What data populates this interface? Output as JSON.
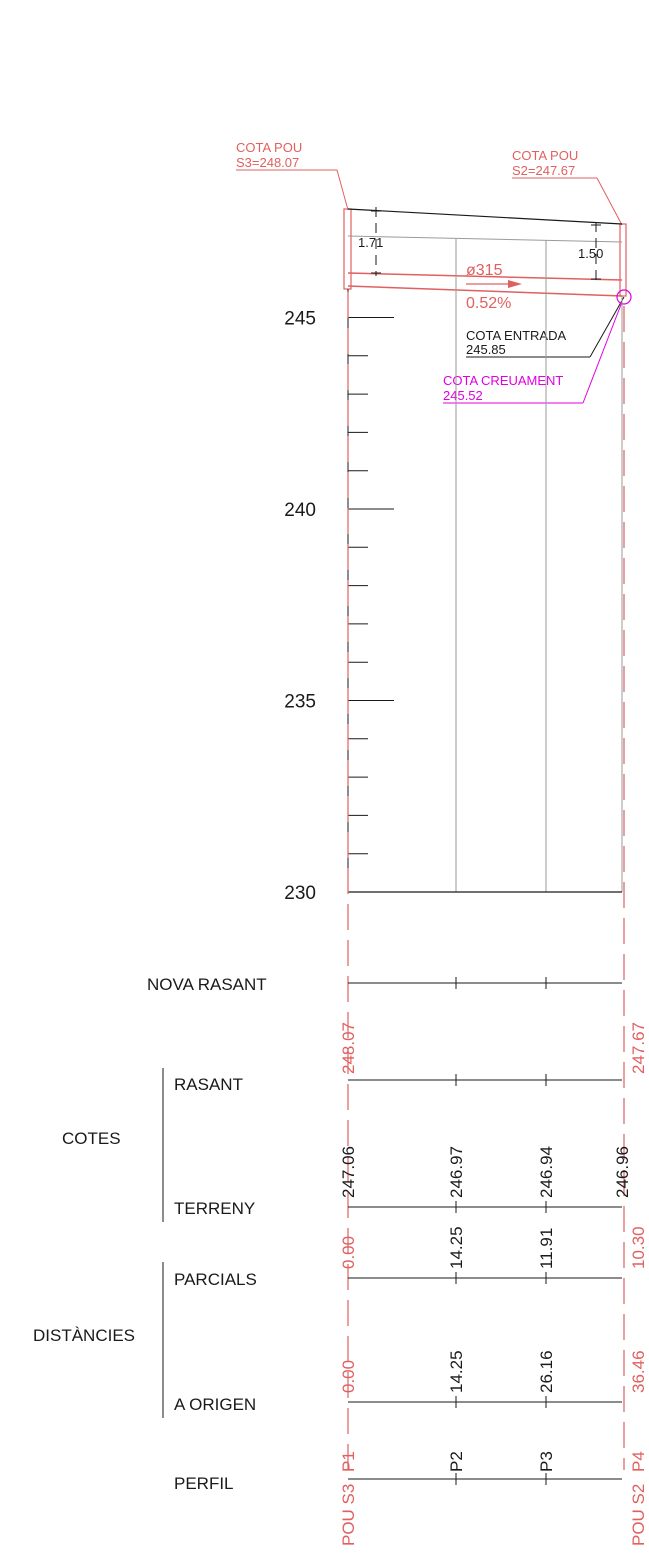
{
  "colors": {
    "line": "#1a1a1a",
    "grid": "#9a9a9a",
    "accent": "#e06060",
    "crossing": "#e000e0"
  },
  "manholes": {
    "start": {
      "label_1": "COTA POU",
      "label_2": "S3=248.07",
      "name": "POU S3"
    },
    "end": {
      "label_1": "COTA POU",
      "label_2": "S2=247.67",
      "name": "POU S2"
    }
  },
  "pipe": {
    "diameter": "ø315",
    "slope": "0.52%"
  },
  "depths": {
    "start": "1.71",
    "end": "1.50"
  },
  "entry": {
    "label": "COTA ENTRADA",
    "value": "245.85"
  },
  "crossing": {
    "label": "COTA CREUAMENT",
    "value": "245.52"
  },
  "elevation_axis": {
    "ticks": [
      {
        "label": "245",
        "value": 245
      },
      {
        "label": "240",
        "value": 240
      },
      {
        "label": "235",
        "value": 235
      },
      {
        "label": "230",
        "value": 230
      }
    ]
  },
  "table": {
    "rows": {
      "nova_rasant": "NOVA RASANT",
      "cotes": "COTES",
      "rasant": "RASANT",
      "terreny": "TERRENY",
      "distancies": "DISTÀNCIES",
      "parcials": "PARCIALS",
      "a_origen": "A ORIGEN",
      "perfil": "PERFIL"
    },
    "stations": [
      {
        "id": "s1",
        "perfil": "P1",
        "nova_rasant": "248.07",
        "terreny": "247.06",
        "parcial": "0.00",
        "origen": "0.00"
      },
      {
        "id": "s2",
        "perfil": "P2",
        "nova_rasant": "",
        "terreny": "246.97",
        "parcial": "14.25",
        "origen": "14.25"
      },
      {
        "id": "s3",
        "perfil": "P3",
        "nova_rasant": "",
        "terreny": "246.94",
        "parcial": "11.91",
        "origen": "26.16"
      },
      {
        "id": "s4",
        "perfil": "P4",
        "nova_rasant": "247.67",
        "terreny": "246.96",
        "parcial": "10.30",
        "origen": "36.46"
      }
    ]
  }
}
